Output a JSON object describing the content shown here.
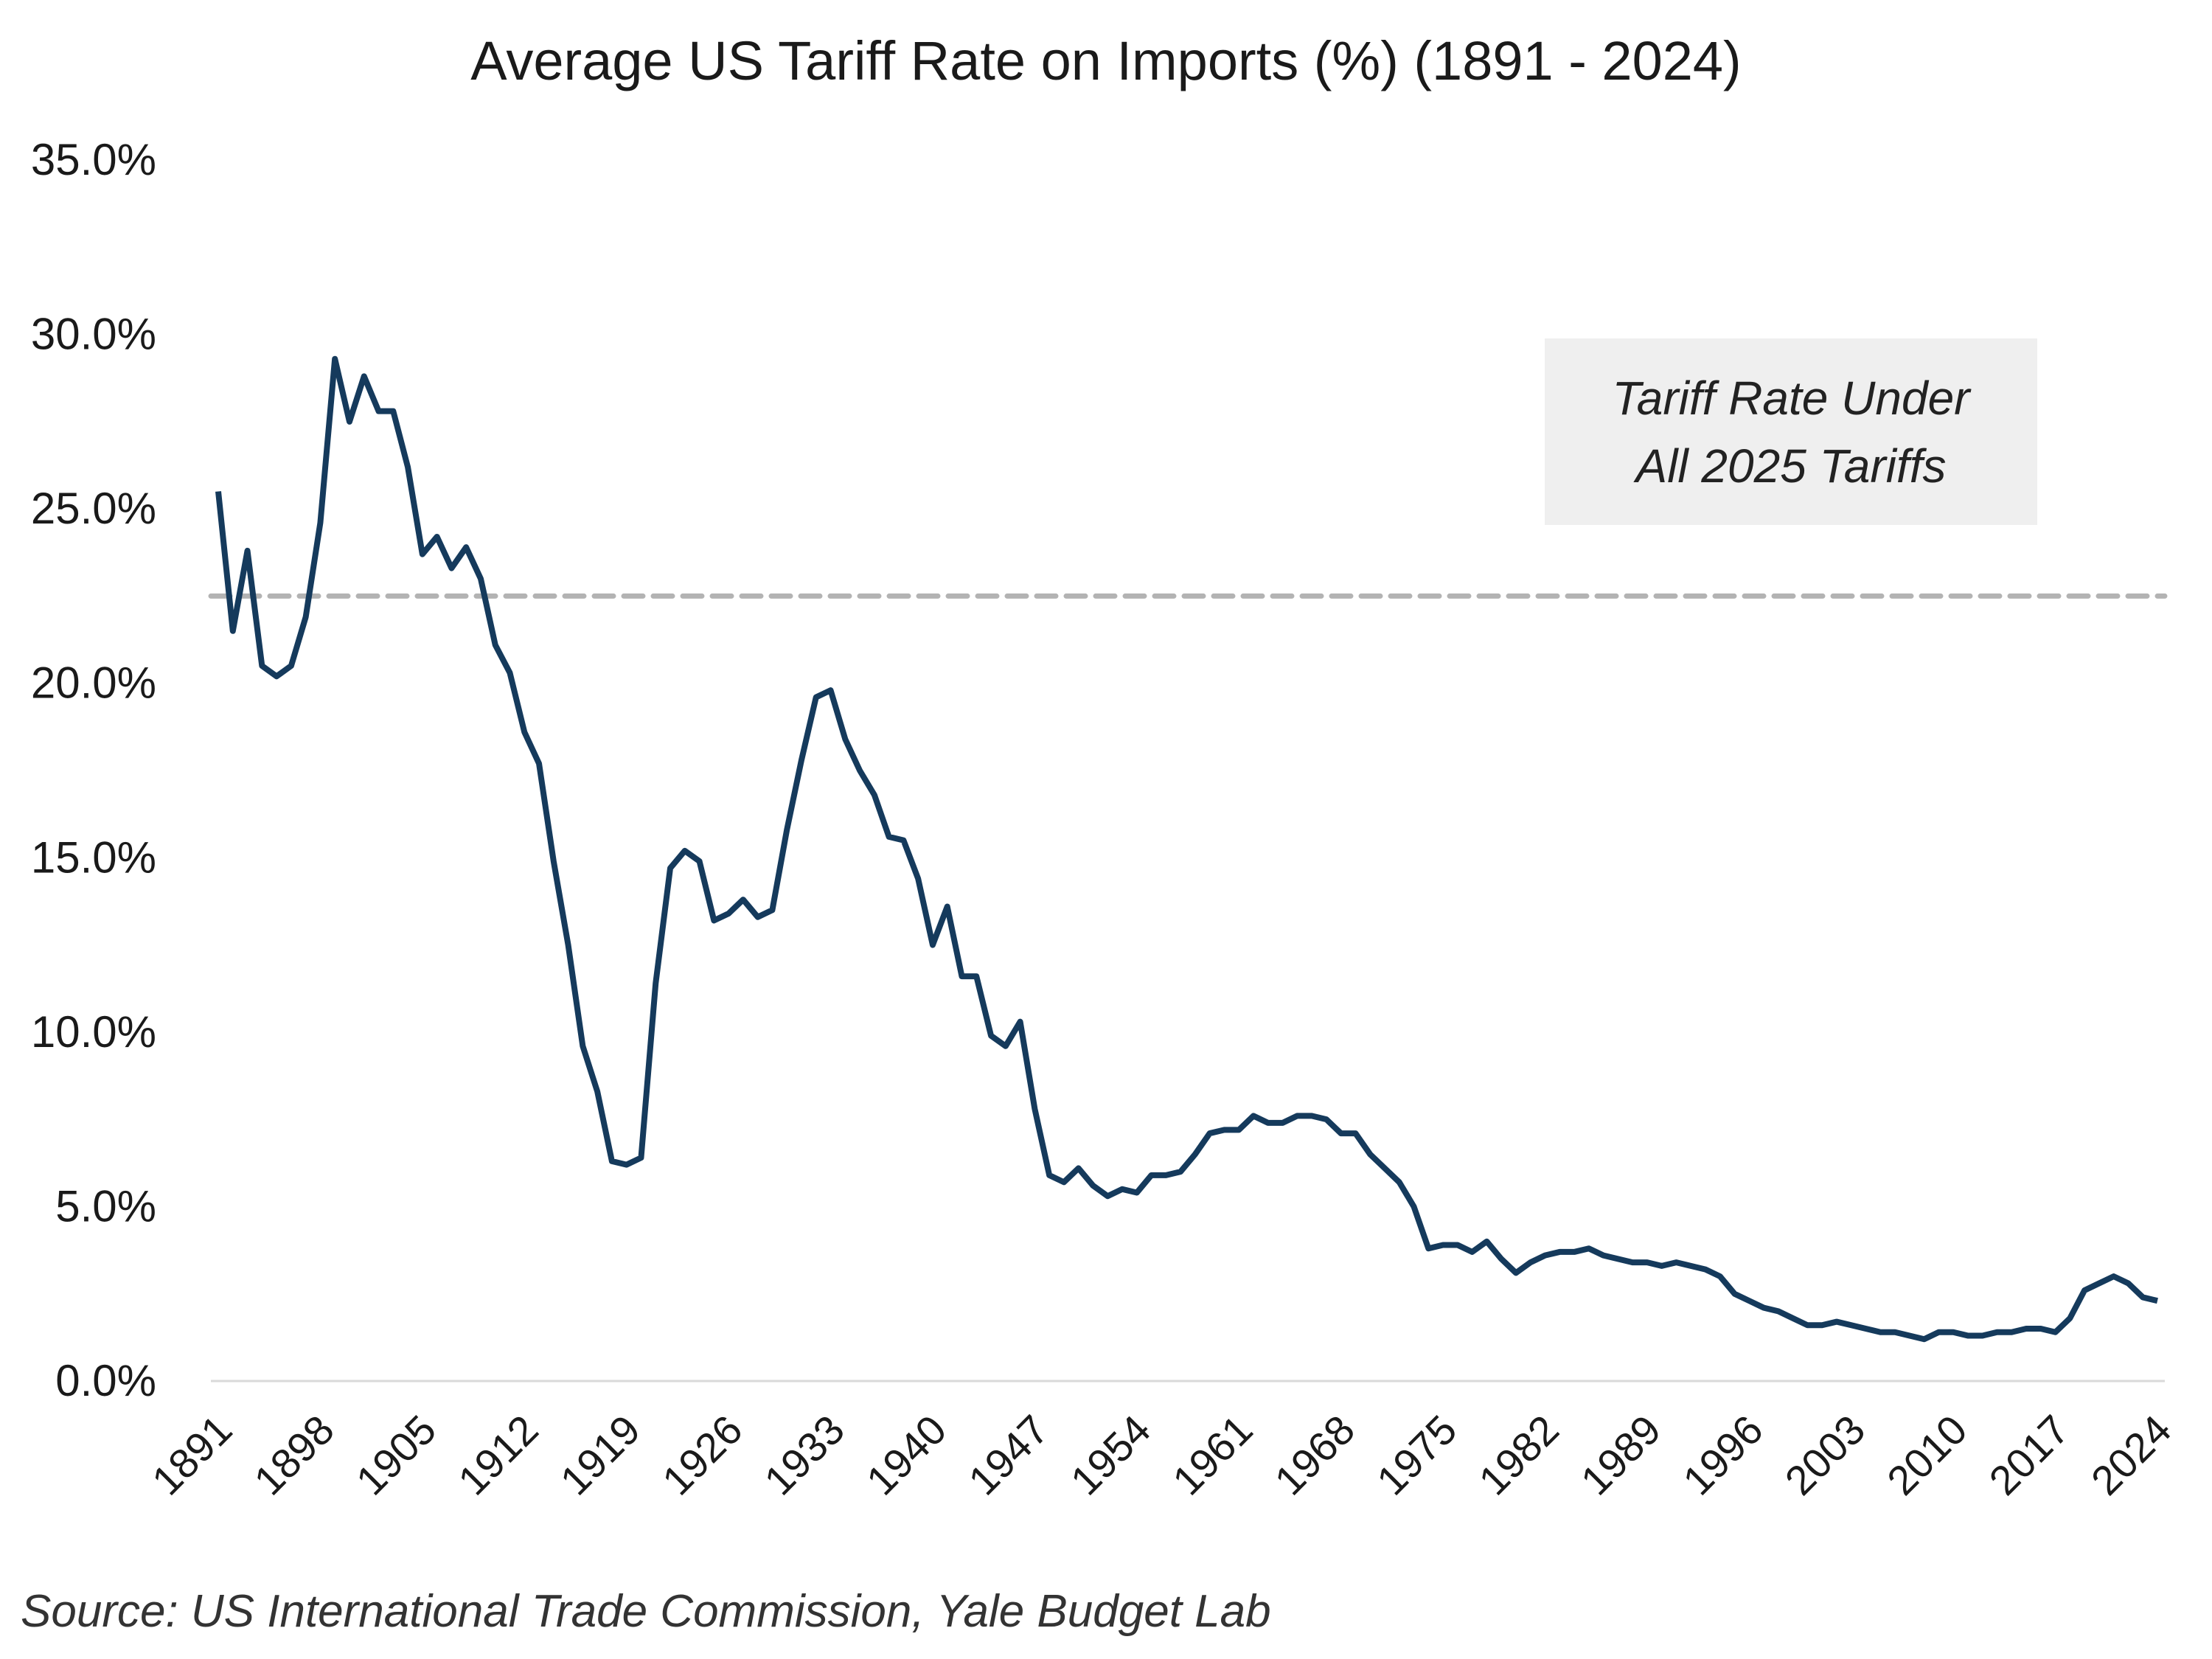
{
  "chart_data": {
    "type": "line",
    "title": "Average US Tariff Rate on Imports (%) (1891 - 2024)",
    "xlabel": "",
    "ylabel": "",
    "x_start": 1891,
    "x_end": 2024,
    "ylim": [
      0,
      35
    ],
    "y_ticks": [
      "0.0%",
      "5.0%",
      "10.0%",
      "15.0%",
      "20.0%",
      "25.0%",
      "30.0%",
      "35.0%"
    ],
    "x_ticks": [
      "1891",
      "1898",
      "1905",
      "1912",
      "1919",
      "1926",
      "1933",
      "1940",
      "1947",
      "1954",
      "1961",
      "1968",
      "1975",
      "1982",
      "1989",
      "1996",
      "2003",
      "2010",
      "2017",
      "2024"
    ],
    "grid": false,
    "line_color": "#153a5c",
    "values": [
      25.5,
      21.5,
      23.8,
      20.5,
      20.2,
      20.5,
      21.9,
      24.6,
      29.3,
      27.5,
      28.8,
      27.8,
      27.8,
      26.2,
      23.7,
      24.2,
      23.3,
      23.9,
      23.0,
      21.1,
      20.3,
      18.6,
      17.7,
      14.9,
      12.5,
      9.6,
      8.3,
      6.3,
      6.2,
      6.4,
      11.4,
      14.7,
      15.2,
      14.9,
      13.2,
      13.4,
      13.8,
      13.3,
      13.5,
      15.8,
      17.8,
      19.6,
      19.8,
      18.4,
      17.5,
      16.8,
      15.6,
      15.5,
      14.4,
      12.5,
      13.6,
      11.6,
      11.6,
      9.9,
      9.6,
      10.3,
      7.8,
      5.9,
      5.7,
      6.1,
      5.6,
      5.3,
      5.5,
      5.4,
      5.9,
      5.9,
      6.0,
      6.5,
      7.1,
      7.2,
      7.2,
      7.6,
      7.4,
      7.4,
      7.6,
      7.6,
      7.5,
      7.1,
      7.1,
      6.5,
      6.1,
      5.7,
      5.0,
      3.8,
      3.9,
      3.9,
      3.7,
      4.0,
      3.5,
      3.1,
      3.4,
      3.6,
      3.7,
      3.7,
      3.8,
      3.6,
      3.5,
      3.4,
      3.4,
      3.3,
      3.4,
      3.3,
      3.2,
      3.0,
      2.5,
      2.3,
      2.1,
      2.0,
      1.8,
      1.6,
      1.6,
      1.7,
      1.6,
      1.5,
      1.4,
      1.4,
      1.3,
      1.2,
      1.4,
      1.4,
      1.3,
      1.3,
      1.4,
      1.4,
      1.5,
      1.5,
      1.4,
      1.8,
      2.6,
      2.8,
      3.0,
      2.8,
      2.4,
      2.3
    ],
    "reference_line": {
      "value": 22.5,
      "style": "dashed",
      "color": "#b3b3b3"
    },
    "annotation": {
      "line1": "Tariff Rate Under",
      "line2": "All 2025 Tariffs"
    },
    "source": "Source: US International Trade Commission, Yale Budget Lab"
  }
}
